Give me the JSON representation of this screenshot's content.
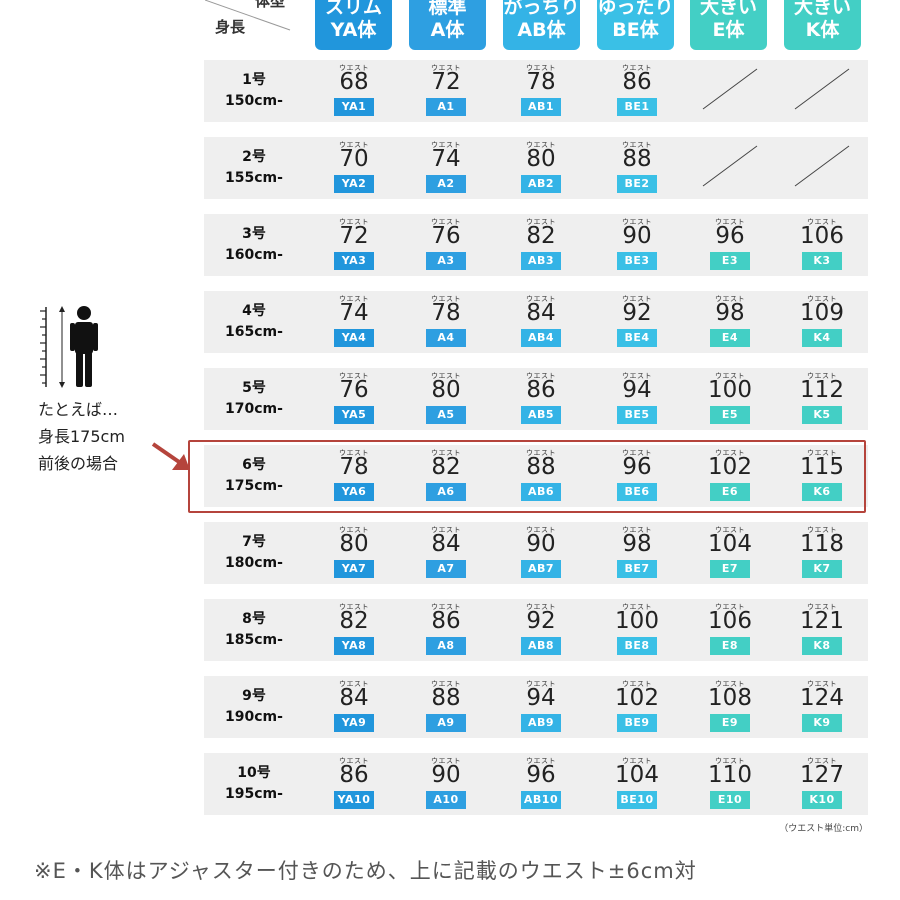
{
  "header": {
    "corner_type_label": "体型",
    "corner_height_label": "身長",
    "columns": [
      {
        "line1": "スリム",
        "line2": "YA体",
        "color": "#2196dc"
      },
      {
        "line1": "標準",
        "line2": "A体",
        "color": "#2e9fe1"
      },
      {
        "line1": "がっちり",
        "line2": "AB体",
        "color": "#34b3e6"
      },
      {
        "line1": "ゆったり",
        "line2": "BE体",
        "color": "#3ac0e6"
      },
      {
        "line1": "大きい",
        "line2": "E体",
        "color": "#43cfc5"
      },
      {
        "line1": "大きい",
        "line2": "K体",
        "color": "#43cfc5"
      }
    ]
  },
  "waist_label": "ウエスト",
  "rows": [
    {
      "size": "1号",
      "height": "150cm-",
      "cells": [
        {
          "w": "68",
          "c": "YA1"
        },
        {
          "w": "72",
          "c": "A1"
        },
        {
          "w": "78",
          "c": "AB1"
        },
        {
          "w": "86",
          "c": "BE1"
        },
        null,
        null
      ]
    },
    {
      "size": "2号",
      "height": "155cm-",
      "cells": [
        {
          "w": "70",
          "c": "YA2"
        },
        {
          "w": "74",
          "c": "A2"
        },
        {
          "w": "80",
          "c": "AB2"
        },
        {
          "w": "88",
          "c": "BE2"
        },
        null,
        null
      ]
    },
    {
      "size": "3号",
      "height": "160cm-",
      "cells": [
        {
          "w": "72",
          "c": "YA3"
        },
        {
          "w": "76",
          "c": "A3"
        },
        {
          "w": "82",
          "c": "AB3"
        },
        {
          "w": "90",
          "c": "BE3"
        },
        {
          "w": "96",
          "c": "E3"
        },
        {
          "w": "106",
          "c": "K3"
        }
      ]
    },
    {
      "size": "4号",
      "height": "165cm-",
      "cells": [
        {
          "w": "74",
          "c": "YA4"
        },
        {
          "w": "78",
          "c": "A4"
        },
        {
          "w": "84",
          "c": "AB4"
        },
        {
          "w": "92",
          "c": "BE4"
        },
        {
          "w": "98",
          "c": "E4"
        },
        {
          "w": "109",
          "c": "K4"
        }
      ]
    },
    {
      "size": "5号",
      "height": "170cm-",
      "cells": [
        {
          "w": "76",
          "c": "YA5"
        },
        {
          "w": "80",
          "c": "A5"
        },
        {
          "w": "86",
          "c": "AB5"
        },
        {
          "w": "94",
          "c": "BE5"
        },
        {
          "w": "100",
          "c": "E5"
        },
        {
          "w": "112",
          "c": "K5"
        }
      ]
    },
    {
      "size": "6号",
      "height": "175cm-",
      "cells": [
        {
          "w": "78",
          "c": "YA6"
        },
        {
          "w": "82",
          "c": "A6"
        },
        {
          "w": "88",
          "c": "AB6"
        },
        {
          "w": "96",
          "c": "BE6"
        },
        {
          "w": "102",
          "c": "E6"
        },
        {
          "w": "115",
          "c": "K6"
        }
      ]
    },
    {
      "size": "7号",
      "height": "180cm-",
      "cells": [
        {
          "w": "80",
          "c": "YA7"
        },
        {
          "w": "84",
          "c": "A7"
        },
        {
          "w": "90",
          "c": "AB7"
        },
        {
          "w": "98",
          "c": "BE7"
        },
        {
          "w": "104",
          "c": "E7"
        },
        {
          "w": "118",
          "c": "K7"
        }
      ]
    },
    {
      "size": "8号",
      "height": "185cm-",
      "cells": [
        {
          "w": "82",
          "c": "YA8"
        },
        {
          "w": "86",
          "c": "A8"
        },
        {
          "w": "92",
          "c": "AB8"
        },
        {
          "w": "100",
          "c": "BE8"
        },
        {
          "w": "106",
          "c": "E8"
        },
        {
          "w": "121",
          "c": "K8"
        }
      ]
    },
    {
      "size": "9号",
      "height": "190cm-",
      "cells": [
        {
          "w": "84",
          "c": "YA9"
        },
        {
          "w": "88",
          "c": "A9"
        },
        {
          "w": "94",
          "c": "AB9"
        },
        {
          "w": "102",
          "c": "BE9"
        },
        {
          "w": "108",
          "c": "E9"
        },
        {
          "w": "124",
          "c": "K9"
        }
      ]
    },
    {
      "size": "10号",
      "height": "195cm-",
      "cells": [
        {
          "w": "86",
          "c": "YA10"
        },
        {
          "w": "90",
          "c": "A10"
        },
        {
          "w": "96",
          "c": "AB10"
        },
        {
          "w": "104",
          "c": "BE10"
        },
        {
          "w": "110",
          "c": "E10"
        },
        {
          "w": "127",
          "c": "K10"
        }
      ]
    }
  ],
  "highlight_row": "6号",
  "example": {
    "line1": "たとえば…",
    "line2": "身長175cm",
    "line3": "前後の場合",
    "highlight_color": "#b5443c"
  },
  "unit_note": "（ウエスト単位:cm）",
  "footnote": "※E・K体はアジャスター付きのため、上に記載のウエスト±6cm対"
}
